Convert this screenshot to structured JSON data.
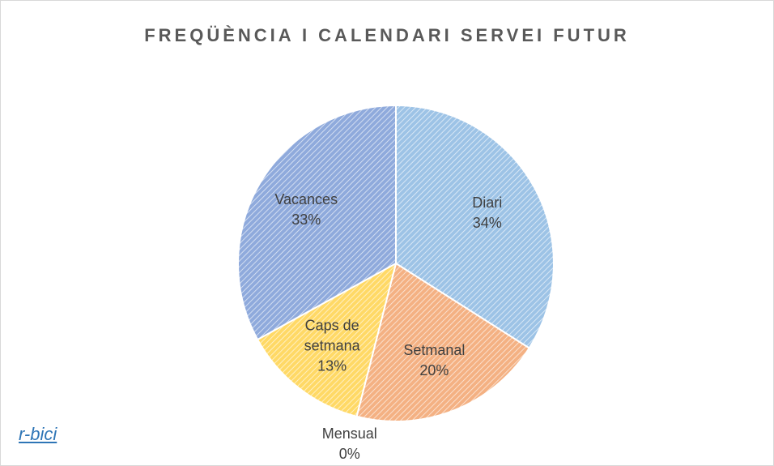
{
  "chart_data": {
    "type": "pie",
    "title": "FREQÜÈNCIA I CALENDARI SERVEI FUTUR",
    "categories": [
      "Diari",
      "Setmanal",
      "Mensual",
      "Caps de setmana",
      "Vacances"
    ],
    "values": [
      34,
      20,
      0,
      13,
      33
    ],
    "value_labels": [
      "34%",
      "20%",
      "0%",
      "13%",
      "33%"
    ],
    "colors": [
      "#9dc3e6",
      "#f4b183",
      "#a5a5a5",
      "#ffd966",
      "#8faadc"
    ],
    "logo": "r-bici"
  }
}
